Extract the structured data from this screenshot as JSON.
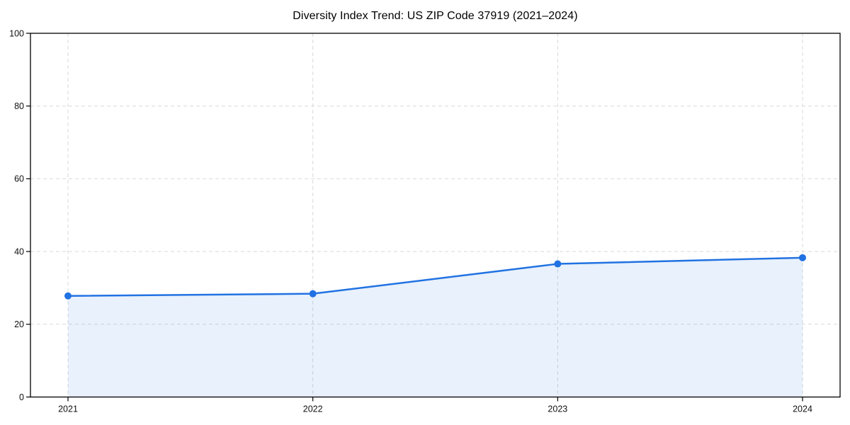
{
  "chart_data": {
    "type": "area",
    "title": "Diversity Index Trend: US ZIP Code 37919 (2021–2024)",
    "categories": [
      "2021",
      "2022",
      "2023",
      "2024"
    ],
    "series": [
      {
        "name": "Diversity Index",
        "values": [
          27.8,
          28.4,
          36.6,
          38.3
        ]
      }
    ],
    "xlabel": "",
    "ylabel": "",
    "ylim": [
      0,
      100
    ],
    "yticks": [
      0,
      20,
      40,
      60,
      80,
      100
    ],
    "grid": true,
    "grid_style": "dashed",
    "legend": "none",
    "line_color": "#2172e2",
    "marker_color": "#2172e2",
    "fill_color": "#2172e2",
    "fill_opacity": 0.1,
    "grid_color": "#d9d9d9",
    "spine_color": "#000000",
    "text_color": "#111111",
    "background_color": "#ffffff"
  }
}
